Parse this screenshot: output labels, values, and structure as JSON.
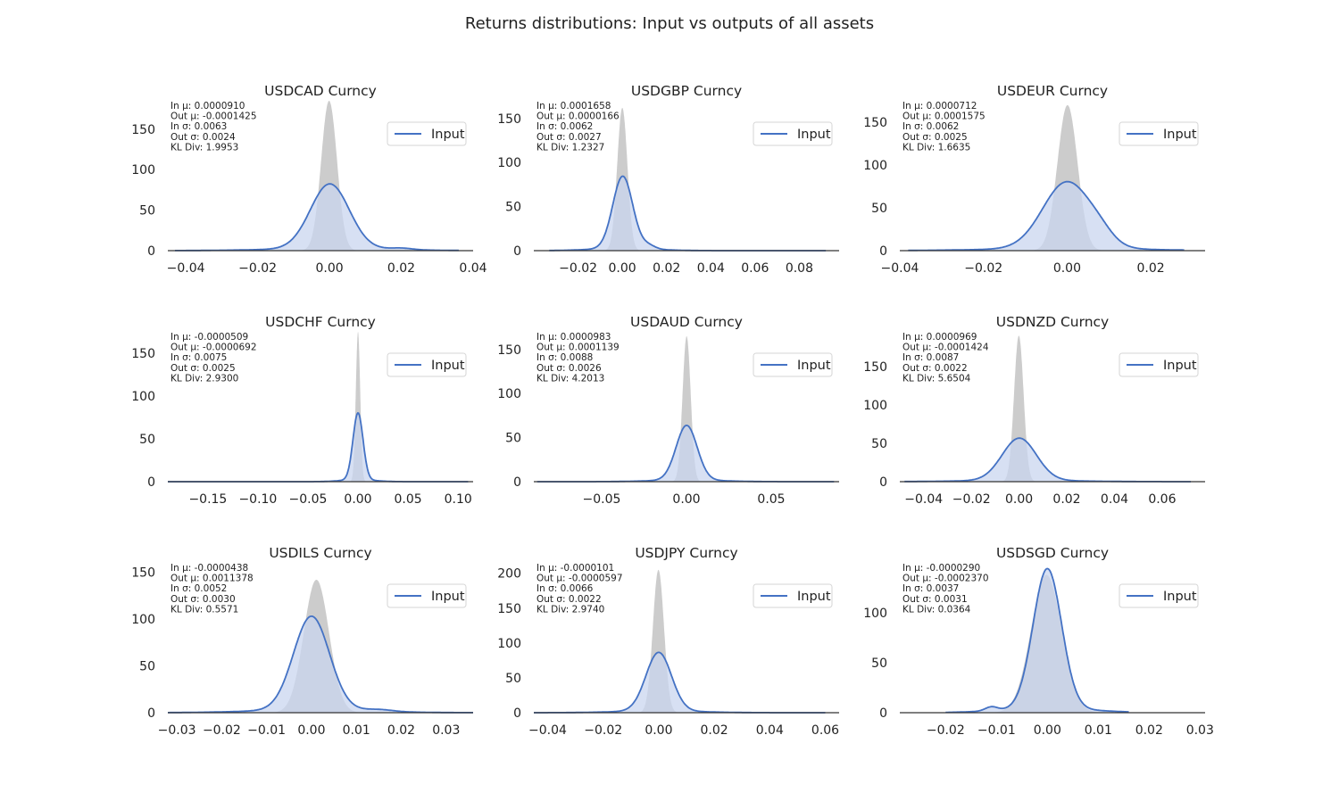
{
  "figure": {
    "title": "Returns distributions: Input vs outputs of all assets"
  },
  "colors": {
    "input_line": "#4472c4",
    "input_fill": "#c9d6ef",
    "output_fill": "#cccccc",
    "overlap_fill": "#9fb2cf",
    "axis": "#333333"
  },
  "chart_data": [
    {
      "type": "area",
      "title": "USDCAD Curncy",
      "legend": "Input",
      "stats": [
        "In μ: 0.0000910",
        "Out μ: -0.0001425",
        "In σ: 0.0063",
        "Out σ: 0.0024",
        "KL Div: 1.9953"
      ],
      "xlim": [
        -0.045,
        0.04
      ],
      "ylim": [
        0,
        185
      ],
      "xticks": [
        -0.04,
        -0.02,
        0.0,
        0.02,
        0.04
      ],
      "xtick_labels": [
        "−0.04",
        "−0.02",
        "0.00",
        "0.02",
        "0.04"
      ],
      "yticks": [
        0,
        50,
        100,
        150
      ],
      "ytick_labels": [
        "0",
        "50",
        "100",
        "150"
      ],
      "input": {
        "mu": 0.0001,
        "sigma": 0.0054,
        "peak": 80,
        "range": [
          -0.043,
          0.036
        ],
        "bumps": [
          [
            0.02,
            0.003,
            2
          ]
        ]
      },
      "output": {
        "mu": -0.0001,
        "sigma": 0.0022,
        "peak": 185
      }
    },
    {
      "type": "area",
      "title": "USDGBP Curncy",
      "legend": "Input",
      "stats": [
        "In μ: 0.0001658",
        "Out μ: 0.0000166",
        "In σ: 0.0062",
        "Out σ: 0.0027",
        "KL Div: 1.2327"
      ],
      "xlim": [
        -0.04,
        0.098
      ],
      "ylim": [
        0,
        170
      ],
      "xticks": [
        -0.02,
        0.0,
        0.02,
        0.04,
        0.06,
        0.08
      ],
      "xtick_labels": [
        "−0.02",
        "0.00",
        "0.02",
        "0.04",
        "0.06",
        "0.08"
      ],
      "yticks": [
        0,
        50,
        100,
        150
      ],
      "ytick_labels": [
        "0",
        "50",
        "100",
        "150"
      ],
      "input": {
        "mu": 0.0002,
        "sigma": 0.0045,
        "peak": 82,
        "range": [
          -0.033,
          0.092
        ],
        "bumps": [
          [
            0.012,
            0.003,
            4
          ]
        ]
      },
      "output": {
        "mu": 0.0,
        "sigma": 0.0023,
        "peak": 162
      }
    },
    {
      "type": "area",
      "title": "USDEUR Curncy",
      "legend": "Input",
      "stats": [
        "In μ: 0.0000712",
        "Out μ: 0.0001575",
        "In σ: 0.0062",
        "Out σ: 0.0025",
        "KL Div: 1.6635"
      ],
      "xlim": [
        -0.04,
        0.033
      ],
      "ylim": [
        0,
        175
      ],
      "xticks": [
        -0.04,
        -0.02,
        0.0,
        0.02
      ],
      "xtick_labels": [
        "−0.04",
        "−0.02",
        "0.00",
        "0.02"
      ],
      "yticks": [
        0,
        50,
        100,
        150
      ],
      "ytick_labels": [
        "0",
        "50",
        "100",
        "150"
      ],
      "input": {
        "mu": 0.0,
        "sigma": 0.0058,
        "peak": 78,
        "range": [
          -0.038,
          0.028
        ],
        "bumps": [
          [
            0.008,
            0.003,
            8
          ]
        ]
      },
      "output": {
        "mu": 0.0001,
        "sigma": 0.0024,
        "peak": 170
      }
    },
    {
      "type": "area",
      "title": "USDCHF Curncy",
      "legend": "Input",
      "stats": [
        "In μ: -0.0000509",
        "Out μ: -0.0000692",
        "In σ: 0.0075",
        "Out σ: 0.0025",
        "KL Div: 2.9300"
      ],
      "xlim": [
        -0.19,
        0.115
      ],
      "ylim": [
        0,
        175
      ],
      "xticks": [
        -0.15,
        -0.1,
        -0.05,
        0.0,
        0.05,
        0.1
      ],
      "xtick_labels": [
        "−0.15",
        "−0.10",
        "−0.05",
        "0.00",
        "0.05",
        "0.10"
      ],
      "yticks": [
        0,
        50,
        100,
        150
      ],
      "ytick_labels": [
        "0",
        "50",
        "100",
        "150"
      ],
      "input": {
        "mu": 0.0,
        "sigma": 0.005,
        "peak": 78,
        "range": [
          -0.19,
          0.11
        ],
        "bumps": []
      },
      "output": {
        "mu": 0.0,
        "sigma": 0.0022,
        "peak": 175
      }
    },
    {
      "type": "area",
      "title": "USDAUD Curncy",
      "legend": "Input",
      "stats": [
        "In μ: 0.0000983",
        "Out μ: 0.0001139",
        "In σ: 0.0088",
        "Out σ: 0.0026",
        "KL Div: 4.2013"
      ],
      "xlim": [
        -0.09,
        0.09
      ],
      "ylim": [
        0,
        170
      ],
      "xticks": [
        -0.05,
        0.0,
        0.05
      ],
      "xtick_labels": [
        "−0.05",
        "0.00",
        "0.05"
      ],
      "yticks": [
        0,
        50,
        100,
        150
      ],
      "ytick_labels": [
        "0",
        "50",
        "100",
        "150"
      ],
      "input": {
        "mu": 0.0001,
        "sigma": 0.0062,
        "peak": 62,
        "range": [
          -0.088,
          0.087
        ],
        "bumps": []
      },
      "output": {
        "mu": 0.0001,
        "sigma": 0.0024,
        "peak": 165
      }
    },
    {
      "type": "area",
      "title": "USDNZD Curncy",
      "legend": "Input",
      "stats": [
        "In μ: 0.0000969",
        "Out μ: -0.0001424",
        "In σ: 0.0087",
        "Out σ: 0.0022",
        "KL Div: 5.6504"
      ],
      "xlim": [
        -0.05,
        0.078
      ],
      "ylim": [
        0,
        195
      ],
      "xticks": [
        -0.04,
        -0.02,
        0.0,
        0.02,
        0.04,
        0.06
      ],
      "xtick_labels": [
        "−0.04",
        "−0.02",
        "0.00",
        "0.02",
        "0.04",
        "0.06"
      ],
      "yticks": [
        0,
        50,
        100,
        150
      ],
      "ytick_labels": [
        "0",
        "50",
        "100",
        "150"
      ],
      "input": {
        "mu": 0.0001,
        "sigma": 0.0072,
        "peak": 55,
        "range": [
          -0.048,
          0.072
        ],
        "bumps": []
      },
      "output": {
        "mu": -0.0001,
        "sigma": 0.002,
        "peak": 190
      }
    },
    {
      "type": "area",
      "title": "USDILS Curncy",
      "legend": "Input",
      "stats": [
        "In μ: -0.0000438",
        "Out μ: 0.0011378",
        "In σ: 0.0052",
        "Out σ: 0.0030",
        "KL Div: 0.5571"
      ],
      "xlim": [
        -0.032,
        0.036
      ],
      "ylim": [
        0,
        160
      ],
      "xticks": [
        -0.03,
        -0.02,
        -0.01,
        0.0,
        0.01,
        0.02,
        0.03
      ],
      "xtick_labels": [
        "−0.03",
        "−0.02",
        "−0.01",
        "0.00",
        "0.01",
        "0.02",
        "0.03"
      ],
      "yticks": [
        0,
        50,
        100,
        150
      ],
      "ytick_labels": [
        "0",
        "50",
        "100",
        "150"
      ],
      "input": {
        "mu": 0.0,
        "sigma": 0.004,
        "peak": 100,
        "range": [
          -0.032,
          0.036
        ],
        "bumps": [
          [
            0.015,
            0.003,
            2
          ]
        ]
      },
      "output": {
        "mu": 0.0011,
        "sigma": 0.0028,
        "peak": 142
      }
    },
    {
      "type": "area",
      "title": "USDJPY Curncy",
      "legend": "Input",
      "stats": [
        "In μ: -0.0000101",
        "Out μ: -0.0000597",
        "In σ: 0.0066",
        "Out σ: 0.0022",
        "KL Div: 2.9740"
      ],
      "xlim": [
        -0.045,
        0.065
      ],
      "ylim": [
        0,
        215
      ],
      "xticks": [
        -0.04,
        -0.02,
        0.0,
        0.02,
        0.04,
        0.06
      ],
      "xtick_labels": [
        "−0.04",
        "−0.02",
        "0.00",
        "0.02",
        "0.04",
        "0.06"
      ],
      "yticks": [
        0,
        50,
        100,
        150,
        200
      ],
      "ytick_labels": [
        "0",
        "50",
        "100",
        "150",
        "200"
      ],
      "input": {
        "mu": 0.0,
        "sigma": 0.0046,
        "peak": 84,
        "range": [
          -0.045,
          0.06
        ],
        "bumps": []
      },
      "output": {
        "mu": -0.0001,
        "sigma": 0.002,
        "peak": 205
      }
    },
    {
      "type": "area",
      "title": "USDSGD Curncy",
      "legend": "Input",
      "stats": [
        "In μ: -0.0000290",
        "Out μ: -0.0002370",
        "In σ: 0.0037",
        "Out σ: 0.0031",
        "KL Div: 0.0364"
      ],
      "xlim": [
        -0.029,
        0.031
      ],
      "ylim": [
        0,
        150
      ],
      "xticks": [
        -0.02,
        -0.01,
        0.0,
        0.01,
        0.02,
        0.03
      ],
      "xtick_labels": [
        "−0.02",
        "−0.01",
        "0.00",
        "0.01",
        "0.02",
        "0.03"
      ],
      "yticks": [
        0,
        50,
        100
      ],
      "ytick_labels": [
        "0",
        "50",
        "100"
      ],
      "input": {
        "mu": 0.0,
        "sigma": 0.0028,
        "peak": 140,
        "range": [
          -0.02,
          0.016
        ],
        "bumps": [
          [
            -0.011,
            0.0012,
            4
          ]
        ]
      },
      "output": {
        "mu": -0.0002,
        "sigma": 0.003,
        "peak": 138
      }
    }
  ]
}
